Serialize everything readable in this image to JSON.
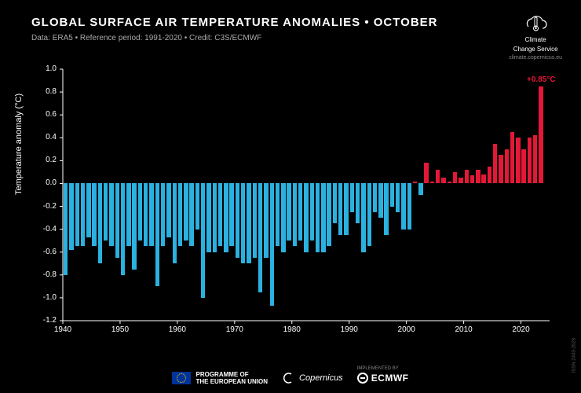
{
  "header": {
    "title": "GLOBAL SURFACE AIR TEMPERATURE ANOMALIES • OCTOBER",
    "subtitle": "Data: ERA5 • Reference period: 1991-2020 • Credit: C3S/ECMWF"
  },
  "logo": {
    "line1": "Climate",
    "line2": "Change Service",
    "url": "climate.copernicus.eu"
  },
  "chart": {
    "type": "bar",
    "ylabel": "Temperature anomaly (°C)",
    "ylim": [
      -1.2,
      1.0
    ],
    "yticks": [
      -1.2,
      -1.0,
      -0.8,
      -0.6,
      -0.4,
      -0.2,
      0.0,
      0.2,
      0.4,
      0.6,
      0.8,
      1.0
    ],
    "xlim": [
      1940,
      2025
    ],
    "xticks": [
      1940,
      1950,
      1960,
      1970,
      1980,
      1990,
      2000,
      2010,
      2020
    ],
    "background_color": "#000000",
    "axis_color": "#ffffff",
    "tick_color": "#ffffff",
    "tick_fontsize": 10,
    "label_fontsize": 11,
    "positive_color": "#e31837",
    "negative_color": "#2bb1e0",
    "bar_gap_ratio": 0.25,
    "annotation": {
      "text": "+0.85°C",
      "color": "#e31837",
      "year": 2023,
      "value": 0.85
    },
    "years": [
      1940,
      1941,
      1942,
      1943,
      1944,
      1945,
      1946,
      1947,
      1948,
      1949,
      1950,
      1951,
      1952,
      1953,
      1954,
      1955,
      1956,
      1957,
      1958,
      1959,
      1960,
      1961,
      1962,
      1963,
      1964,
      1965,
      1966,
      1967,
      1968,
      1969,
      1970,
      1971,
      1972,
      1973,
      1974,
      1975,
      1976,
      1977,
      1978,
      1979,
      1980,
      1981,
      1982,
      1983,
      1984,
      1985,
      1986,
      1987,
      1988,
      1989,
      1990,
      1991,
      1992,
      1993,
      1994,
      1995,
      1996,
      1997,
      1998,
      1999,
      2000,
      2001,
      2002,
      2003,
      2004,
      2005,
      2006,
      2007,
      2008,
      2009,
      2010,
      2011,
      2012,
      2013,
      2014,
      2015,
      2016,
      2017,
      2018,
      2019,
      2020,
      2021,
      2022,
      2023
    ],
    "values": [
      -0.8,
      -0.58,
      -0.55,
      -0.55,
      -0.47,
      -0.55,
      -0.7,
      -0.5,
      -0.55,
      -0.65,
      -0.8,
      -0.55,
      -0.75,
      -0.5,
      -0.55,
      -0.55,
      -0.9,
      -0.55,
      -0.47,
      -0.7,
      -0.55,
      -0.5,
      -0.55,
      -0.4,
      -1.0,
      -0.6,
      -0.6,
      -0.55,
      -0.6,
      -0.55,
      -0.65,
      -0.7,
      -0.7,
      -0.65,
      -0.95,
      -0.65,
      -1.07,
      -0.55,
      -0.6,
      -0.5,
      -0.55,
      -0.5,
      -0.6,
      -0.5,
      -0.6,
      -0.6,
      -0.55,
      -0.35,
      -0.45,
      -0.45,
      -0.25,
      -0.35,
      -0.6,
      -0.55,
      -0.25,
      -0.3,
      -0.45,
      -0.2,
      -0.25,
      -0.4,
      -0.4,
      0.02,
      -0.1,
      0.18,
      0.02,
      0.12,
      0.05,
      0.02,
      0.1,
      0.05,
      0.12,
      0.07,
      0.12,
      0.08,
      0.15,
      0.35,
      0.25,
      0.3,
      0.45,
      0.4,
      0.3,
      0.4,
      0.42,
      0.85
    ]
  },
  "footer": {
    "eu_line1": "PROGRAMME OF",
    "eu_line2": "THE EUROPEAN UNION",
    "copernicus": "Copernicus",
    "implemented_by": "IMPLEMENTED BY",
    "ecmwf": "ECMWF"
  },
  "side_credit": "ISSN 2443-2628"
}
